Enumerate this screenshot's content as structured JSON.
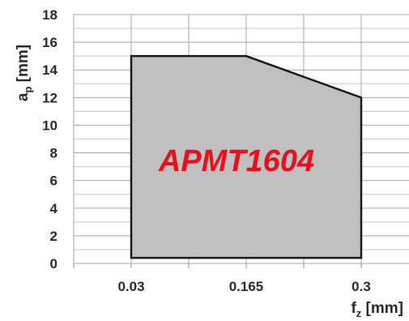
{
  "chart_data": {
    "type": "area",
    "title": "",
    "grid": true,
    "x_ticks": [
      "0.03",
      "0.165",
      "0.3"
    ],
    "x_tick_values": [
      0.03,
      0.165,
      0.3
    ],
    "xlabel": {
      "symbol": "f",
      "subscript": "z",
      "unit": " [mm]"
    },
    "ylabel": {
      "symbol": "a",
      "subscript": "p",
      "unit": " [mm]"
    },
    "y_ticks": [
      0,
      2,
      4,
      6,
      8,
      10,
      12,
      14,
      16,
      18
    ],
    "ylim": [
      0,
      18
    ],
    "region": {
      "label": "APMT1604",
      "fill": "#c0c0c0",
      "outline": "#1a1a1a",
      "points": [
        {
          "x": 0.03,
          "y": 0.4
        },
        {
          "x": 0.03,
          "y": 15
        },
        {
          "x": 0.165,
          "y": 15
        },
        {
          "x": 0.3,
          "y": 12
        },
        {
          "x": 0.3,
          "y": 0.4
        }
      ]
    },
    "label_color": "#e8101c"
  }
}
